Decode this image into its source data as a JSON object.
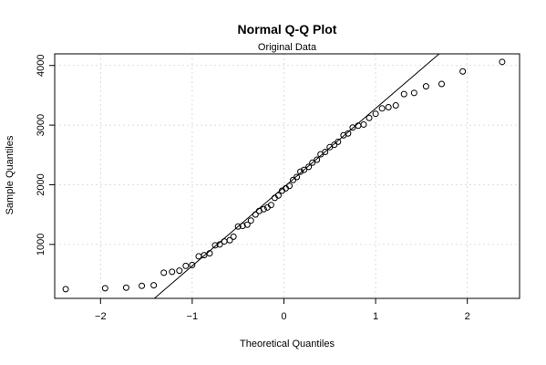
{
  "chart_data": {
    "type": "scatter",
    "title": "Normal Q-Q Plot",
    "subtitle": "Original Data",
    "xlabel": "Theoretical Quantiles",
    "ylabel": "Sample Quantiles",
    "xlim": [
      -2.5,
      2.57
    ],
    "ylim": [
      95,
      4195
    ],
    "xticks": [
      -2,
      -1,
      0,
      1,
      2
    ],
    "yticks": [
      1000,
      2000,
      3000,
      4000
    ],
    "grid": true,
    "points": [
      [
        -2.38,
        250
      ],
      [
        -1.95,
        265
      ],
      [
        -1.72,
        275
      ],
      [
        -1.55,
        305
      ],
      [
        -1.42,
        315
      ],
      [
        -1.31,
        525
      ],
      [
        -1.22,
        540
      ],
      [
        -1.14,
        560
      ],
      [
        -1.07,
        640
      ],
      [
        -1.0,
        655
      ],
      [
        -0.93,
        800
      ],
      [
        -0.87,
        820
      ],
      [
        -0.81,
        850
      ],
      [
        -0.75,
        985
      ],
      [
        -0.7,
        1000
      ],
      [
        -0.65,
        1050
      ],
      [
        -0.59,
        1070
      ],
      [
        -0.55,
        1130
      ],
      [
        -0.5,
        1300
      ],
      [
        -0.45,
        1310
      ],
      [
        -0.4,
        1330
      ],
      [
        -0.36,
        1400
      ],
      [
        -0.31,
        1500
      ],
      [
        -0.27,
        1560
      ],
      [
        -0.22,
        1590
      ],
      [
        -0.18,
        1620
      ],
      [
        -0.14,
        1660
      ],
      [
        -0.1,
        1780
      ],
      [
        -0.06,
        1820
      ],
      [
        -0.02,
        1900
      ],
      [
        0.02,
        1940
      ],
      [
        0.06,
        1980
      ],
      [
        0.1,
        2080
      ],
      [
        0.14,
        2130
      ],
      [
        0.18,
        2220
      ],
      [
        0.22,
        2250
      ],
      [
        0.27,
        2300
      ],
      [
        0.31,
        2370
      ],
      [
        0.36,
        2420
      ],
      [
        0.4,
        2510
      ],
      [
        0.45,
        2550
      ],
      [
        0.5,
        2630
      ],
      [
        0.55,
        2670
      ],
      [
        0.59,
        2720
      ],
      [
        0.65,
        2830
      ],
      [
        0.7,
        2860
      ],
      [
        0.75,
        2960
      ],
      [
        0.81,
        2990
      ],
      [
        0.87,
        3010
      ],
      [
        0.93,
        3120
      ],
      [
        1.0,
        3190
      ],
      [
        1.07,
        3280
      ],
      [
        1.14,
        3300
      ],
      [
        1.22,
        3330
      ],
      [
        1.31,
        3520
      ],
      [
        1.42,
        3540
      ],
      [
        1.55,
        3650
      ],
      [
        1.72,
        3690
      ],
      [
        1.95,
        3900
      ],
      [
        2.38,
        4060
      ]
    ],
    "reference_line": {
      "intercept": 1960,
      "slope": 1320
    },
    "colors": {
      "points": "#000000",
      "line": "#000000",
      "grid": "#d3d3d3",
      "axis": "#000000"
    }
  }
}
